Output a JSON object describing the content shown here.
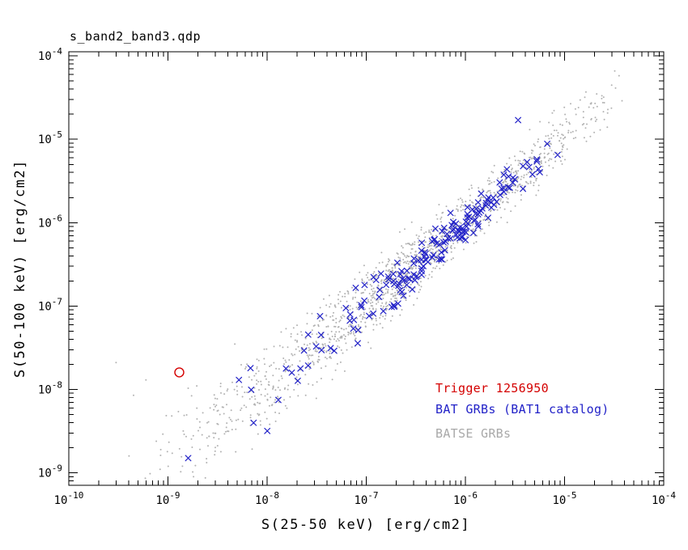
{
  "chart_data": {
    "type": "scatter",
    "title": "s_band2_band3.qdp",
    "xlabel": "S(25-50 keV) [erg/cm2]",
    "ylabel": "S(50-100 keV) [erg/cm2]",
    "xscale": "log",
    "yscale": "log",
    "xlim": [
      1e-10,
      0.0001
    ],
    "ylim": [
      7e-10,
      0.00011
    ],
    "xlim_log": [
      -10,
      -4
    ],
    "ylim_log": [
      -9.15,
      -3.95
    ],
    "xticks_exp": [
      -10,
      -9,
      -8,
      -7,
      -6,
      -5,
      -4
    ],
    "yticks_exp": [
      -9,
      -8,
      -7,
      -6,
      -5,
      -4
    ],
    "grid": false,
    "frame_color": "#000000",
    "generator_seed": 1256950,
    "legend": {
      "position": "lower-right",
      "entries": [
        {
          "label": "Trigger 1256950",
          "color": "#d40000",
          "marker": "open-circle"
        },
        {
          "label": "BAT GRBs (BAT1 catalog)",
          "color": "#2323c8",
          "marker": "x"
        },
        {
          "label": "BATSE GRBs",
          "color": "#a9a9a9",
          "marker": "dot"
        }
      ]
    },
    "series": [
      {
        "name": "Trigger 1256950",
        "marker": "open-circle",
        "color": "#d40000",
        "points": [
          [
            1.3e-09,
            1.6e-08
          ]
        ]
      },
      {
        "name": "BAT GRBs (BAT1 catalog)",
        "marker": "x",
        "color": "#2323c8",
        "points": [
          [
            1.6e-09,
            1.5e-09
          ],
          [
            5.2e-09,
            1.3e-08
          ],
          [
            6.8e-09,
            1.8e-08
          ],
          [
            3.4e-06,
            1.7e-05
          ],
          [
            8.5e-06,
            6.5e-06
          ]
        ],
        "cloud": {
          "count": 175,
          "logx_range": [
            -8.45,
            -5.05
          ],
          "bias_pow": 0.75,
          "slope": 1.0,
          "offset": 0.02,
          "sigma_bright": 0.12,
          "sigma_faint_extra": 0.18,
          "faint_ref": -6.3,
          "faint_span": 2.2,
          "faint_skew": 0,
          "skew_ref": -99
        }
      },
      {
        "name": "BATSE GRBs",
        "marker": "dot",
        "color": "#b2b2b2",
        "points": [
          [
            3e-10,
            2.1e-08
          ],
          [
            4.5e-10,
            8.5e-09
          ],
          [
            6e-10,
            1.3e-08
          ],
          [
            1.4e-09,
            1.2e-09
          ],
          [
            2.1e-09,
            3.5e-09
          ],
          [
            1.6e-05,
            3.2e-05
          ],
          [
            2.7e-05,
            1.4e-05
          ],
          [
            3.8e-05,
            2.9e-05
          ]
        ],
        "cloud": {
          "count": 1500,
          "logx_range": [
            -9.6,
            -4.35
          ],
          "bias_pow": 0.8,
          "slope": 1.0,
          "offset": 0.02,
          "sigma_bright": 0.155,
          "sigma_faint_extra": 0.16,
          "faint_ref": -6.0,
          "faint_span": 3.0,
          "faint_skew": 0.3,
          "skew_ref": -7.6
        }
      }
    ]
  }
}
